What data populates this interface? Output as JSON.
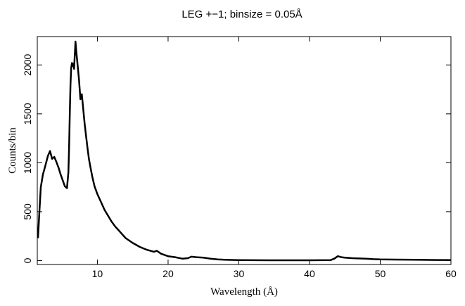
{
  "chart_data": {
    "type": "line",
    "title": "LEG +−1; binsize = 0.05Å",
    "xlabel": "Wavelength (Å)",
    "ylabel": "Counts/bin",
    "xlim": [
      1.5,
      60
    ],
    "ylim": [
      -40,
      2290
    ],
    "x_ticks": [
      10,
      20,
      30,
      40,
      50,
      60
    ],
    "y_ticks": [
      0,
      500,
      1000,
      1500,
      2000
    ],
    "grid": false,
    "line_color": "#000000",
    "series": [
      {
        "x": [
          1.6,
          1.8,
          2.0,
          2.3,
          2.6,
          3.0,
          3.3,
          3.6,
          3.9,
          4.2,
          4.5,
          4.8,
          5.1,
          5.4,
          5.7,
          5.9,
          6.0,
          6.1,
          6.2,
          6.3,
          6.4,
          6.5,
          6.6,
          6.7,
          6.8,
          6.9,
          7.0,
          7.2,
          7.4,
          7.6,
          7.8,
          8.0,
          8.2,
          8.4,
          8.6,
          8.8,
          9.0,
          9.3,
          9.6,
          10.0,
          10.5,
          11.0,
          11.5,
          12.0,
          12.5,
          13.0,
          13.5,
          14.0,
          15.0,
          16.0,
          17.0,
          18.0,
          18.4,
          19.0,
          20.0,
          21.0,
          22.0,
          22.8,
          23.3,
          24.0,
          25.0,
          26.0,
          27.0,
          28.0,
          30.0,
          35.0,
          40.0,
          43.0,
          43.5,
          44.0,
          44.5,
          45.0,
          46.0,
          47.0,
          48.0,
          49.0,
          50.0,
          52.0,
          55.0,
          58.0,
          60.0
        ],
        "y": [
          230,
          500,
          750,
          880,
          960,
          1070,
          1120,
          1040,
          1060,
          1010,
          950,
          880,
          820,
          760,
          740,
          900,
          1150,
          1500,
          1800,
          1970,
          2020,
          1990,
          2010,
          1960,
          2100,
          2240,
          2150,
          2000,
          1850,
          1650,
          1700,
          1550,
          1400,
          1270,
          1150,
          1040,
          960,
          850,
          760,
          680,
          600,
          520,
          460,
          400,
          350,
          310,
          270,
          230,
          180,
          140,
          110,
          90,
          100,
          70,
          45,
          35,
          20,
          25,
          40,
          35,
          30,
          20,
          12,
          8,
          5,
          3,
          3,
          5,
          20,
          45,
          35,
          30,
          25,
          22,
          20,
          15,
          12,
          10,
          8,
          6,
          5
        ]
      }
    ]
  }
}
